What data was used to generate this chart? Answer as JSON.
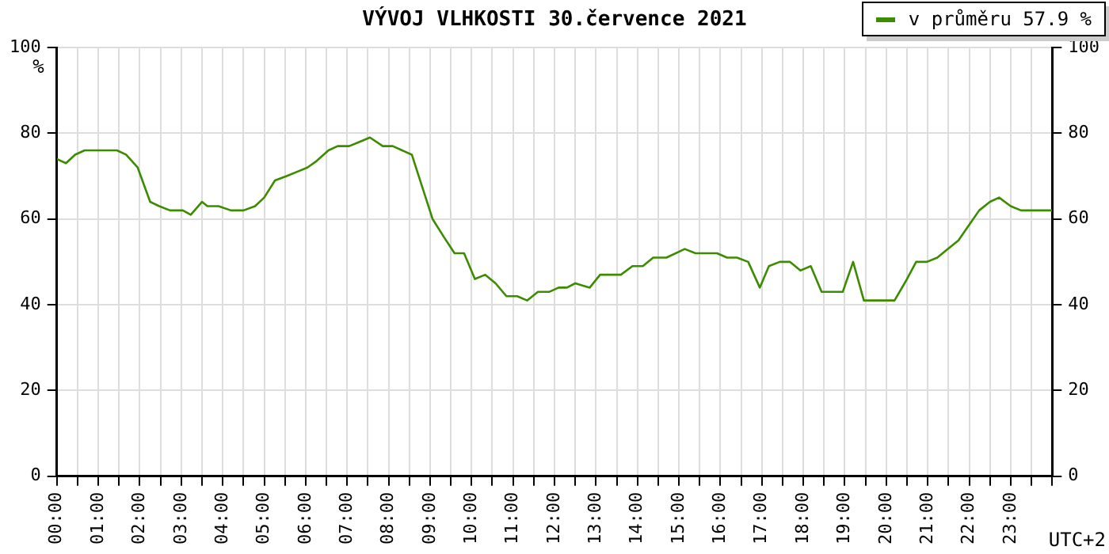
{
  "chart_data": {
    "type": "line",
    "title": "VÝVOJ VLHKOSTI  30.července 2021",
    "xlabel": "UTC+2",
    "ylabel": "%",
    "xlim": [
      0,
      24
    ],
    "xticks": [
      {
        "value": 0,
        "label": "00:00"
      },
      {
        "value": 0.5,
        "label": null
      },
      {
        "value": 1,
        "label": "01:00"
      },
      {
        "value": 1.5,
        "label": null
      },
      {
        "value": 2,
        "label": "02:00"
      },
      {
        "value": 2.5,
        "label": null
      },
      {
        "value": 3,
        "label": "03:00"
      },
      {
        "value": 3.5,
        "label": null
      },
      {
        "value": 4,
        "label": "04:00"
      },
      {
        "value": 4.5,
        "label": null
      },
      {
        "value": 5,
        "label": "05:00"
      },
      {
        "value": 5.5,
        "label": null
      },
      {
        "value": 6,
        "label": "06:00"
      },
      {
        "value": 6.5,
        "label": null
      },
      {
        "value": 7,
        "label": "07:00"
      },
      {
        "value": 7.5,
        "label": null
      },
      {
        "value": 8,
        "label": "08:00"
      },
      {
        "value": 8.5,
        "label": null
      },
      {
        "value": 9,
        "label": "09:00"
      },
      {
        "value": 9.5,
        "label": null
      },
      {
        "value": 10,
        "label": "10:00"
      },
      {
        "value": 10.5,
        "label": null
      },
      {
        "value": 11,
        "label": "11:00"
      },
      {
        "value": 11.5,
        "label": null
      },
      {
        "value": 12,
        "label": "12:00"
      },
      {
        "value": 12.5,
        "label": null
      },
      {
        "value": 13,
        "label": "13:00"
      },
      {
        "value": 13.5,
        "label": null
      },
      {
        "value": 14,
        "label": "14:00"
      },
      {
        "value": 14.5,
        "label": null
      },
      {
        "value": 15,
        "label": "15:00"
      },
      {
        "value": 15.5,
        "label": null
      },
      {
        "value": 16,
        "label": "16:00"
      },
      {
        "value": 16.5,
        "label": null
      },
      {
        "value": 17,
        "label": "17:00"
      },
      {
        "value": 17.5,
        "label": null
      },
      {
        "value": 18,
        "label": "18:00"
      },
      {
        "value": 18.5,
        "label": null
      },
      {
        "value": 19,
        "label": "19:00"
      },
      {
        "value": 19.5,
        "label": null
      },
      {
        "value": 20,
        "label": "20:00"
      },
      {
        "value": 20.5,
        "label": null
      },
      {
        "value": 21,
        "label": "21:00"
      },
      {
        "value": 21.5,
        "label": null
      },
      {
        "value": 22,
        "label": "22:00"
      },
      {
        "value": 22.5,
        "label": null
      },
      {
        "value": 23,
        "label": "23:00"
      },
      {
        "value": 23.5,
        "label": null
      },
      {
        "value": 24,
        "label": null
      }
    ],
    "ylim": [
      0,
      100
    ],
    "yticks": [
      0,
      20,
      40,
      60,
      80,
      100
    ],
    "y2lim": [
      0,
      100
    ],
    "y2ticks": [
      0,
      20,
      40,
      60,
      80,
      100
    ],
    "grid": true,
    "legend": "top right",
    "marker": "none",
    "series": [
      {
        "name": "v průměru 57.9 %",
        "color": "#3c8c00",
        "x": [
          0,
          0.22,
          0.44,
          0.67,
          1.45,
          1.67,
          1.95,
          2.25,
          2.47,
          2.73,
          3.04,
          3.23,
          3.5,
          3.63,
          3.9,
          4.2,
          4.5,
          4.78,
          5.0,
          5.26,
          5.54,
          5.79,
          6.04,
          6.26,
          6.55,
          6.77,
          7.05,
          7.3,
          7.55,
          7.86,
          8.1,
          8.56,
          8.81,
          9.06,
          9.32,
          9.59,
          9.82,
          10.08,
          10.33,
          10.58,
          10.84,
          11.1,
          11.34,
          11.6,
          11.87,
          12.1,
          12.3,
          12.5,
          12.85,
          13.1,
          13.6,
          13.88,
          14.13,
          14.38,
          14.7,
          15.14,
          15.4,
          15.92,
          16.16,
          16.4,
          16.67,
          16.95,
          17.17,
          17.43,
          17.68,
          17.93,
          18.18,
          18.44,
          18.95,
          19.2,
          19.46,
          20.2,
          20.47,
          20.72,
          20.98,
          21.23,
          21.48,
          21.74,
          21.99,
          22.24,
          22.5,
          22.72,
          23.0,
          23.25,
          24.0
        ],
        "values": [
          74,
          73,
          75,
          76,
          76,
          75,
          72,
          64,
          63,
          62,
          62,
          61,
          64,
          63,
          63,
          62,
          62,
          63,
          65,
          69,
          70,
          71,
          72,
          73.5,
          76,
          77,
          77,
          78,
          79,
          77,
          77,
          75,
          67.5,
          60,
          56,
          52,
          52,
          46,
          47,
          45,
          42,
          42,
          41,
          43,
          43,
          44,
          44,
          45,
          44,
          47,
          47,
          49,
          49,
          51,
          51,
          53,
          52,
          52,
          51,
          51,
          50,
          44,
          49,
          50,
          50,
          48,
          49,
          43,
          43,
          50,
          41,
          41,
          45.5,
          50,
          50,
          51,
          53,
          55,
          58.5,
          62,
          64,
          65,
          63,
          62,
          62
        ]
      }
    ]
  }
}
